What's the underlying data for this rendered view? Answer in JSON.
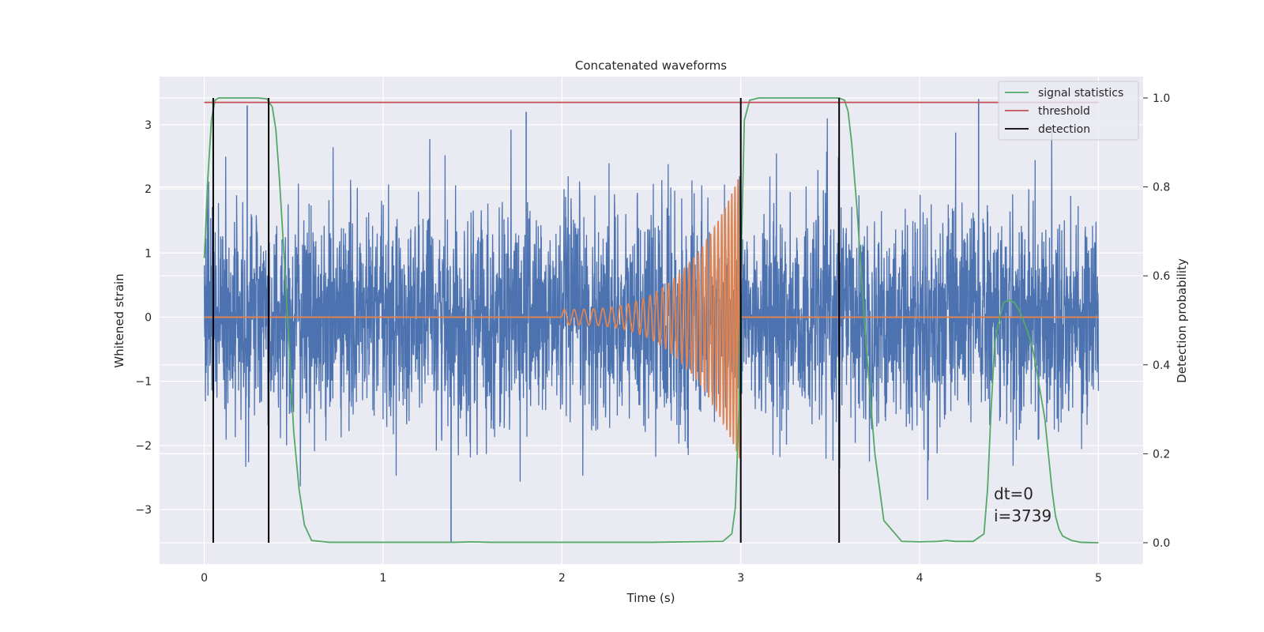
{
  "chart_data": {
    "type": "line",
    "title": "Concatenated waveforms",
    "xlabel": "Time (s)",
    "ylabel": "Whitened strain",
    "y2label": "Detection probability",
    "xlim": [
      -0.25,
      5.25
    ],
    "ylim": [
      -3.85,
      3.75
    ],
    "y2lim": [
      -0.048,
      1.048
    ],
    "xticks": [
      0,
      1,
      2,
      3,
      4,
      5
    ],
    "yticks": [
      -3,
      -2,
      -1,
      0,
      1,
      2,
      3
    ],
    "y2ticks": [
      0.0,
      0.2,
      0.4,
      0.6,
      0.8,
      1.0
    ],
    "xtick_labels": [
      "0",
      "1",
      "2",
      "3",
      "4",
      "5"
    ],
    "ytick_labels": [
      "−3",
      "−2",
      "−1",
      "0",
      "1",
      "2",
      "3"
    ],
    "y2tick_labels": [
      "0.0",
      "0.2",
      "0.4",
      "0.6",
      "0.8",
      "1.0"
    ],
    "grid": true,
    "legend_position": "top-right",
    "series": [
      {
        "kind": "noise",
        "axis": "left",
        "color": "#4c72b0",
        "x_range": [
          0,
          5
        ],
        "std": 0.95,
        "note_peaks": [
          [
            0.24,
            3.3
          ],
          [
            1.8,
            3.2
          ],
          [
            4.33,
            3.4
          ],
          [
            1.38,
            -3.5
          ]
        ]
      },
      {
        "kind": "chirp",
        "axis": "left",
        "color": "#dd8452",
        "flat": [
          [
            0,
            2.0
          ],
          [
            3.0,
            5.0
          ]
        ],
        "chirp": {
          "t_start": 2.0,
          "t_end": 3.0,
          "amp_start": 0.12,
          "amp_end": 2.25,
          "f_start": 18,
          "f_end": 60
        }
      },
      {
        "name": "signal statistics",
        "axis": "right",
        "color": "#55a868",
        "x": [
          0,
          0.02,
          0.04,
          0.06,
          0.08,
          0.1,
          0.15,
          0.2,
          0.3,
          0.35,
          0.38,
          0.4,
          0.42,
          0.45,
          0.48,
          0.5,
          0.53,
          0.56,
          0.6,
          0.7,
          1.0,
          1.4,
          1.5,
          1.6,
          2.0,
          2.5,
          2.9,
          2.95,
          2.97,
          2.99,
          3.0,
          3.02,
          3.05,
          3.1,
          3.2,
          3.4,
          3.55,
          3.58,
          3.6,
          3.62,
          3.65,
          3.7,
          3.75,
          3.8,
          3.9,
          4.0,
          4.1,
          4.15,
          4.2,
          4.3,
          4.36,
          4.38,
          4.4,
          4.42,
          4.45,
          4.47,
          4.5,
          4.53,
          4.56,
          4.6,
          4.63,
          4.65,
          4.67,
          4.7,
          4.72,
          4.74,
          4.76,
          4.78,
          4.8,
          4.85,
          4.9,
          5.0
        ],
        "values": [
          0.64,
          0.82,
          0.95,
          0.995,
          1.0,
          1.0,
          1.0,
          1.0,
          1.0,
          0.998,
          0.98,
          0.93,
          0.82,
          0.62,
          0.4,
          0.25,
          0.12,
          0.04,
          0.005,
          0.001,
          0.001,
          0.001,
          0.002,
          0.001,
          0.001,
          0.001,
          0.003,
          0.02,
          0.08,
          0.3,
          0.6,
          0.95,
          0.995,
          1.0,
          1.0,
          1.0,
          1.0,
          0.995,
          0.97,
          0.9,
          0.75,
          0.45,
          0.2,
          0.05,
          0.003,
          0.002,
          0.003,
          0.005,
          0.003,
          0.003,
          0.02,
          0.12,
          0.3,
          0.45,
          0.51,
          0.54,
          0.546,
          0.54,
          0.52,
          0.48,
          0.44,
          0.4,
          0.35,
          0.28,
          0.2,
          0.12,
          0.06,
          0.03,
          0.015,
          0.005,
          0.001,
          0.0
        ]
      },
      {
        "name": "threshold",
        "axis": "right",
        "color": "#c44e52",
        "x": [
          0,
          5
        ],
        "values": [
          0.99,
          0.99
        ]
      },
      {
        "name": "detection",
        "axis": "right",
        "color": "#000000",
        "vlines": [
          0.05,
          0.36,
          3.0,
          3.55
        ],
        "ymin": 0.0,
        "ymax": 1.0
      }
    ],
    "legend": [
      {
        "label": "signal statistics",
        "color": "#55a868"
      },
      {
        "label": "threshold",
        "color": "#c44e52"
      },
      {
        "label": "detection",
        "color": "#000000"
      }
    ],
    "annotations": [
      "dt=0",
      "i=3739"
    ]
  }
}
